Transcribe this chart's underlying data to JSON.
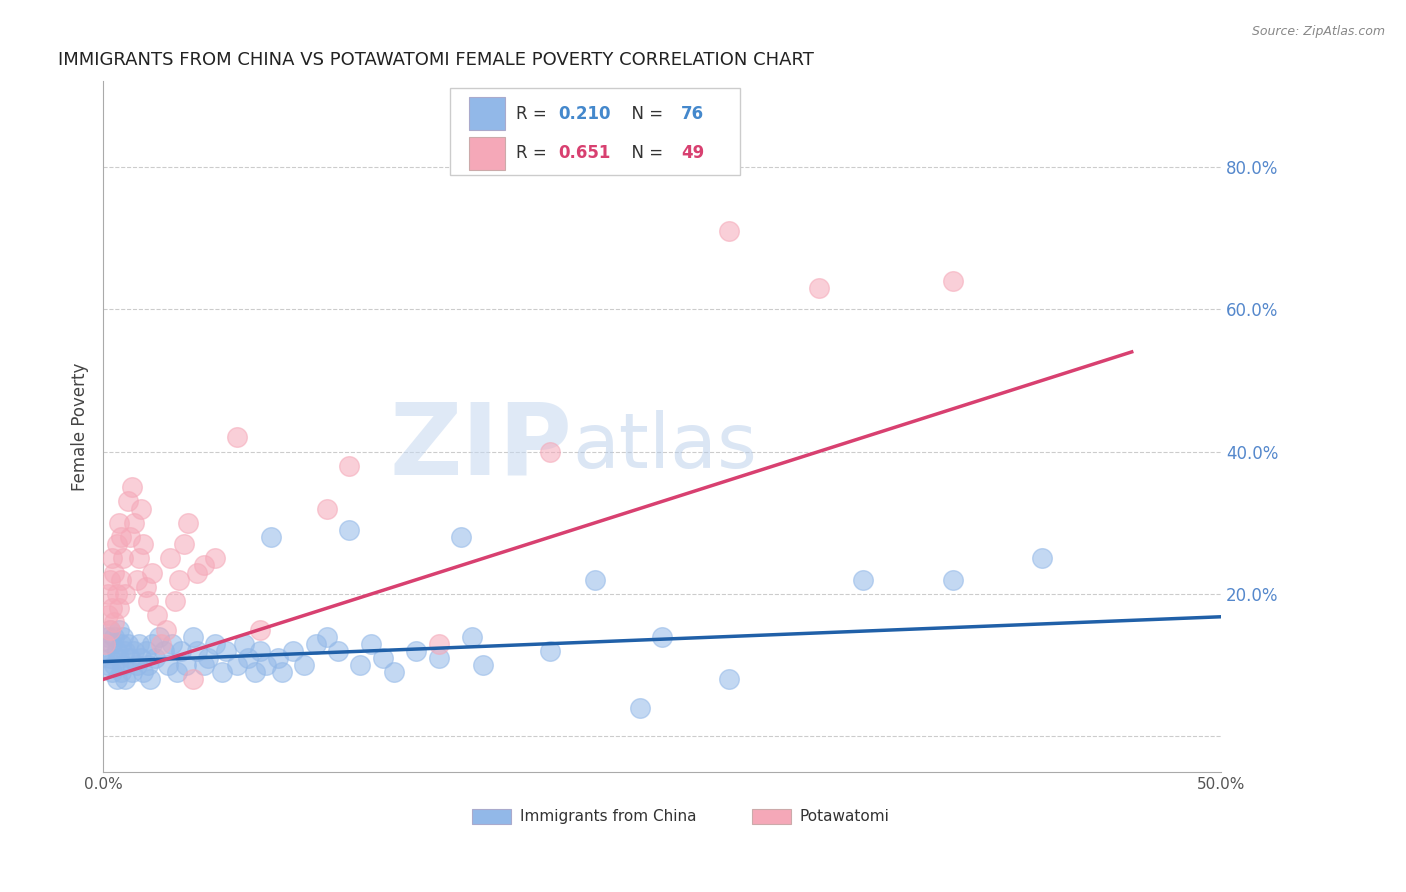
{
  "title": "IMMIGRANTS FROM CHINA VS POTAWATOMI FEMALE POVERTY CORRELATION CHART",
  "source": "Source: ZipAtlas.com",
  "ylabel": "Female Poverty",
  "xlim": [
    0.0,
    0.5
  ],
  "ylim": [
    -0.05,
    0.92
  ],
  "yticks": [
    0.0,
    0.2,
    0.4,
    0.6,
    0.8
  ],
  "ytick_labels": [
    "",
    "20.0%",
    "40.0%",
    "60.0%",
    "80.0%"
  ],
  "blue_color": "#92b8e8",
  "pink_color": "#f5a8b8",
  "blue_line_color": "#2060a8",
  "pink_line_color": "#d84070",
  "watermark_zip": "ZIP",
  "watermark_atlas": "atlas",
  "blue_scatter": [
    [
      0.001,
      0.12
    ],
    [
      0.002,
      0.14
    ],
    [
      0.002,
      0.1
    ],
    [
      0.003,
      0.15
    ],
    [
      0.003,
      0.11
    ],
    [
      0.004,
      0.13
    ],
    [
      0.004,
      0.09
    ],
    [
      0.005,
      0.14
    ],
    [
      0.005,
      0.1
    ],
    [
      0.006,
      0.12
    ],
    [
      0.006,
      0.08
    ],
    [
      0.007,
      0.15
    ],
    [
      0.007,
      0.11
    ],
    [
      0.008,
      0.13
    ],
    [
      0.008,
      0.09
    ],
    [
      0.009,
      0.14
    ],
    [
      0.009,
      0.1
    ],
    [
      0.01,
      0.12
    ],
    [
      0.01,
      0.08
    ],
    [
      0.011,
      0.13
    ],
    [
      0.012,
      0.11
    ],
    [
      0.013,
      0.09
    ],
    [
      0.014,
      0.12
    ],
    [
      0.015,
      0.1
    ],
    [
      0.016,
      0.13
    ],
    [
      0.017,
      0.11
    ],
    [
      0.018,
      0.09
    ],
    [
      0.019,
      0.12
    ],
    [
      0.02,
      0.1
    ],
    [
      0.021,
      0.08
    ],
    [
      0.022,
      0.13
    ],
    [
      0.023,
      0.11
    ],
    [
      0.025,
      0.14
    ],
    [
      0.027,
      0.12
    ],
    [
      0.029,
      0.1
    ],
    [
      0.031,
      0.13
    ],
    [
      0.033,
      0.09
    ],
    [
      0.035,
      0.12
    ],
    [
      0.037,
      0.1
    ],
    [
      0.04,
      0.14
    ],
    [
      0.042,
      0.12
    ],
    [
      0.045,
      0.1
    ],
    [
      0.047,
      0.11
    ],
    [
      0.05,
      0.13
    ],
    [
      0.053,
      0.09
    ],
    [
      0.055,
      0.12
    ],
    [
      0.06,
      0.1
    ],
    [
      0.063,
      0.13
    ],
    [
      0.065,
      0.11
    ],
    [
      0.068,
      0.09
    ],
    [
      0.07,
      0.12
    ],
    [
      0.073,
      0.1
    ],
    [
      0.075,
      0.28
    ],
    [
      0.078,
      0.11
    ],
    [
      0.08,
      0.09
    ],
    [
      0.085,
      0.12
    ],
    [
      0.09,
      0.1
    ],
    [
      0.095,
      0.13
    ],
    [
      0.1,
      0.14
    ],
    [
      0.105,
      0.12
    ],
    [
      0.11,
      0.29
    ],
    [
      0.115,
      0.1
    ],
    [
      0.12,
      0.13
    ],
    [
      0.125,
      0.11
    ],
    [
      0.13,
      0.09
    ],
    [
      0.14,
      0.12
    ],
    [
      0.15,
      0.11
    ],
    [
      0.16,
      0.28
    ],
    [
      0.165,
      0.14
    ],
    [
      0.17,
      0.1
    ],
    [
      0.2,
      0.12
    ],
    [
      0.22,
      0.22
    ],
    [
      0.24,
      0.04
    ],
    [
      0.25,
      0.14
    ],
    [
      0.28,
      0.08
    ],
    [
      0.34,
      0.22
    ],
    [
      0.38,
      0.22
    ],
    [
      0.42,
      0.25
    ]
  ],
  "pink_scatter": [
    [
      0.001,
      0.13
    ],
    [
      0.002,
      0.17
    ],
    [
      0.002,
      0.2
    ],
    [
      0.003,
      0.15
    ],
    [
      0.003,
      0.22
    ],
    [
      0.004,
      0.18
    ],
    [
      0.004,
      0.25
    ],
    [
      0.005,
      0.16
    ],
    [
      0.005,
      0.23
    ],
    [
      0.006,
      0.2
    ],
    [
      0.006,
      0.27
    ],
    [
      0.007,
      0.18
    ],
    [
      0.007,
      0.3
    ],
    [
      0.008,
      0.22
    ],
    [
      0.008,
      0.28
    ],
    [
      0.009,
      0.25
    ],
    [
      0.01,
      0.2
    ],
    [
      0.011,
      0.33
    ],
    [
      0.012,
      0.28
    ],
    [
      0.013,
      0.35
    ],
    [
      0.014,
      0.3
    ],
    [
      0.015,
      0.22
    ],
    [
      0.016,
      0.25
    ],
    [
      0.017,
      0.32
    ],
    [
      0.018,
      0.27
    ],
    [
      0.019,
      0.21
    ],
    [
      0.02,
      0.19
    ],
    [
      0.022,
      0.23
    ],
    [
      0.024,
      0.17
    ],
    [
      0.026,
      0.13
    ],
    [
      0.028,
      0.15
    ],
    [
      0.03,
      0.25
    ],
    [
      0.032,
      0.19
    ],
    [
      0.034,
      0.22
    ],
    [
      0.036,
      0.27
    ],
    [
      0.038,
      0.3
    ],
    [
      0.04,
      0.08
    ],
    [
      0.042,
      0.23
    ],
    [
      0.045,
      0.24
    ],
    [
      0.05,
      0.25
    ],
    [
      0.06,
      0.42
    ],
    [
      0.07,
      0.15
    ],
    [
      0.1,
      0.32
    ],
    [
      0.11,
      0.38
    ],
    [
      0.15,
      0.13
    ],
    [
      0.2,
      0.4
    ],
    [
      0.28,
      0.71
    ],
    [
      0.32,
      0.63
    ],
    [
      0.38,
      0.64
    ]
  ],
  "blue_line": {
    "x0": 0.0,
    "y0": 0.105,
    "x1": 0.5,
    "y1": 0.168
  },
  "pink_line": {
    "x0": 0.0,
    "y0": 0.08,
    "x1": 0.46,
    "y1": 0.54
  }
}
